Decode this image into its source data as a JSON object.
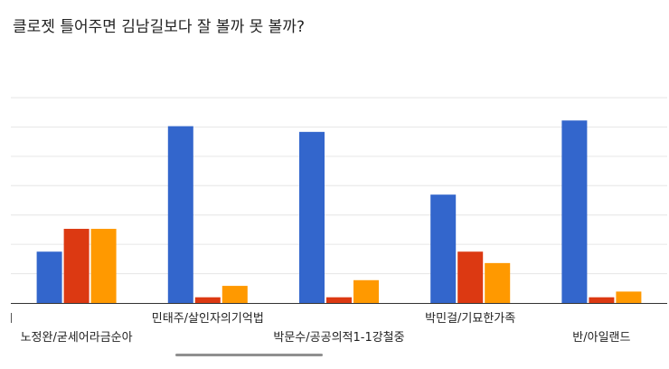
{
  "chart_data": {
    "type": "bar",
    "title": "클로젯 틀어주면 김남길보다 잘 볼까 못 볼까?",
    "categories": [
      "노정완/굳세어라금순아",
      "민태주/살인자의기억법",
      "박문수/공공의적1-1강철중",
      "박민걸/기묘한가족",
      "반/아일랜드"
    ],
    "series": [
      {
        "values": [
          9,
          31,
          30,
          19,
          32
        ]
      },
      {
        "values": [
          13,
          1,
          1,
          9,
          1
        ]
      },
      {
        "values": [
          13,
          3,
          4,
          7,
          2
        ]
      }
    ],
    "ylim": [
      0,
      36
    ],
    "grid": true,
    "legend": "none",
    "colors": [
      "#3366cc",
      "#dc3912",
      "#ff9900"
    ]
  }
}
